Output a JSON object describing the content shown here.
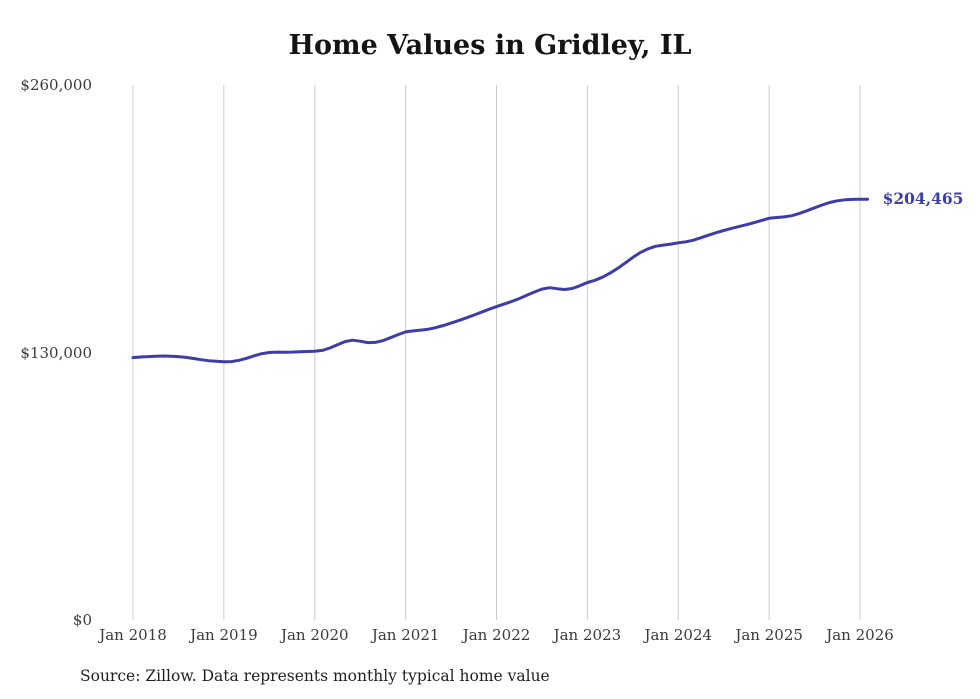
{
  "page": {
    "background_color": "#ffffff"
  },
  "chart_data": {
    "type": "line",
    "title": "Home Values in Gridley, IL",
    "xlabel": "",
    "ylabel": "",
    "ylim": [
      0,
      260000
    ],
    "grid": "vertical-only",
    "legend": "none",
    "line_color": "#3d3da8",
    "grid_color": "#cccccc",
    "text_color": "#3a3a3a",
    "y_ticks": [
      {
        "value": 260000,
        "label": "$260,000"
      },
      {
        "value": 130000,
        "label": "$130,000"
      },
      {
        "value": 0,
        "label": "$0"
      }
    ],
    "x_ticks": [
      "Jan 2018",
      "Jan 2019",
      "Jan 2020",
      "Jan 2021",
      "Jan 2022",
      "Jan 2023",
      "Jan 2024",
      "Jan 2025",
      "Jan 2026"
    ],
    "series": [
      {
        "name": "Monthly typical home value",
        "start": "Jan 2018",
        "interval": "monthly",
        "end_value_label": "$204,465",
        "values": [
          127500,
          127800,
          128000,
          128200,
          128300,
          128200,
          128000,
          127600,
          127100,
          126500,
          126000,
          125700,
          125500,
          125600,
          126200,
          127200,
          128400,
          129400,
          130000,
          130200,
          130100,
          130200,
          130400,
          130500,
          130600,
          131000,
          132200,
          133800,
          135300,
          136000,
          135500,
          134800,
          134900,
          135800,
          137200,
          138700,
          140000,
          140500,
          140900,
          141300,
          142100,
          143100,
          144300,
          145500,
          146800,
          148200,
          149600,
          151000,
          152300,
          153500,
          154800,
          156200,
          157800,
          159400,
          160800,
          161500,
          161000,
          160600,
          161100,
          162400,
          164000,
          165100,
          166600,
          168600,
          170900,
          173500,
          176200,
          178600,
          180400,
          181600,
          182200,
          182700,
          183300,
          183800,
          184600,
          185800,
          187000,
          188200,
          189300,
          190300,
          191200,
          192100,
          193100,
          194200,
          195200,
          195600,
          195900,
          196500,
          197600,
          198900,
          200300,
          201700,
          202900,
          203700,
          204200,
          204400,
          204450,
          204465
        ]
      }
    ],
    "source_note": "Source: Zillow. Data represents monthly typical home value"
  }
}
